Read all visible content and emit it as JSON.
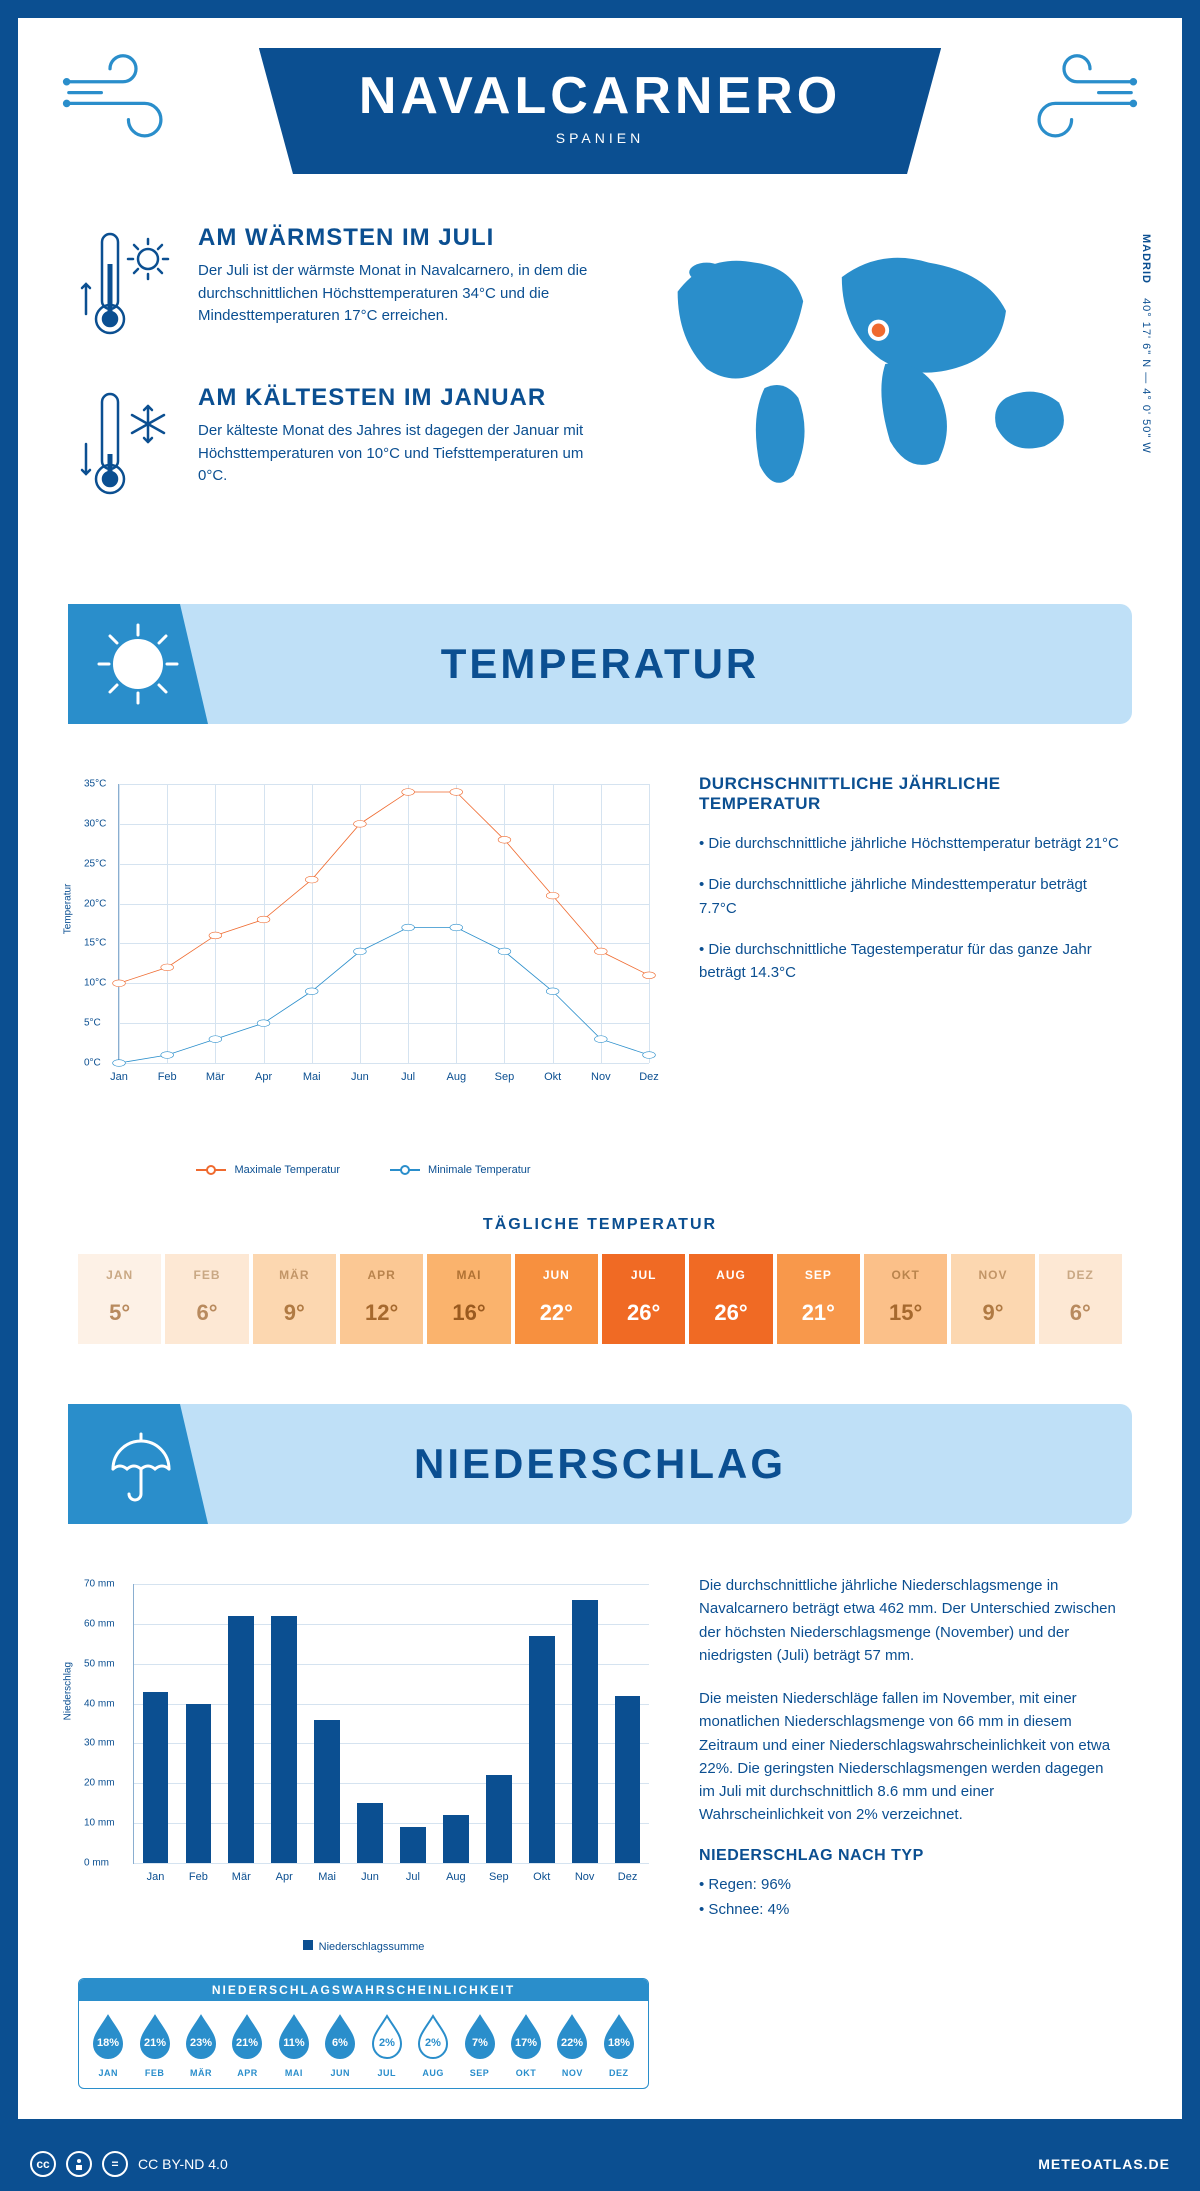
{
  "colors": {
    "primary": "#0b4f91",
    "light_blue": "#bfe0f7",
    "mid_blue": "#2a8ecb",
    "orange": "#ef6a2f",
    "grid": "#d5e3f0",
    "axis": "#8aaed0"
  },
  "header": {
    "city": "NAVALCARNERO",
    "country": "SPANIEN"
  },
  "facts": {
    "warm": {
      "title": "AM WÄRMSTEN IM JULI",
      "text": "Der Juli ist der wärmste Monat in Navalcarnero, in dem die durchschnittlichen Höchsttemperaturen 34°C und die Mindesttemperaturen 17°C erreichen."
    },
    "cold": {
      "title": "AM KÄLTESTEN IM JANUAR",
      "text": "Der kälteste Monat des Jahres ist dagegen der Januar mit Höchsttemperaturen von 10°C und Tiefsttemperaturen um 0°C."
    }
  },
  "coords": {
    "city": "MADRID",
    "value": "40° 17' 6\" N — 4° 0' 50\" W"
  },
  "temp_section": {
    "title": "TEMPERATUR",
    "sidebar_title": "DURCHSCHNITTLICHE JÄHRLICHE TEMPERATUR",
    "bullets": [
      "• Die durchschnittliche jährliche Höchsttemperatur beträgt 21°C",
      "• Die durchschnittliche jährliche Mindesttemperatur beträgt 7.7°C",
      "• Die durchschnittliche Tagestemperatur für das ganze Jahr beträgt 14.3°C"
    ]
  },
  "line_chart": {
    "type": "line",
    "ylim": [
      0,
      35
    ],
    "ytick_step": 5,
    "y_unit": "°C",
    "y_axis_title": "Temperatur",
    "months": [
      "Jan",
      "Feb",
      "Mär",
      "Apr",
      "Mai",
      "Jun",
      "Jul",
      "Aug",
      "Sep",
      "Okt",
      "Nov",
      "Dez"
    ],
    "series": {
      "max": {
        "label": "Maximale Temperatur",
        "color": "#ef6a2f",
        "values": [
          10,
          12,
          16,
          18,
          23,
          30,
          34,
          34,
          28,
          21,
          14,
          11
        ]
      },
      "min": {
        "label": "Minimale Temperatur",
        "color": "#2a8ecb",
        "values": [
          0,
          1,
          3,
          5,
          9,
          14,
          17,
          17,
          14,
          9,
          3,
          1
        ]
      }
    }
  },
  "daily": {
    "title": "TÄGLICHE TEMPERATUR",
    "months": [
      "JAN",
      "FEB",
      "MÄR",
      "APR",
      "MAI",
      "JUN",
      "JUL",
      "AUG",
      "SEP",
      "OKT",
      "NOV",
      "DEZ"
    ],
    "values": [
      "5°",
      "6°",
      "9°",
      "12°",
      "16°",
      "22°",
      "26°",
      "26°",
      "21°",
      "15°",
      "9°",
      "6°"
    ],
    "bg_colors": [
      "#fdf1e6",
      "#fde8d4",
      "#fcd7b0",
      "#fbc894",
      "#fab36d",
      "#f7903f",
      "#f06a24",
      "#f06a24",
      "#f8984b",
      "#fbc089",
      "#fcd7b0",
      "#fde8d4"
    ],
    "text_colors": [
      "#b88a5e",
      "#b88a5e",
      "#b07a43",
      "#a6692e",
      "#9a5a1f",
      "#ffffff",
      "#ffffff",
      "#ffffff",
      "#ffffff",
      "#a6692e",
      "#b07a43",
      "#b88a5e"
    ],
    "month_colors": [
      "#c9a884",
      "#c9a884",
      "#c29567",
      "#b9844d",
      "#b07234",
      "#ffffff",
      "#ffffff",
      "#ffffff",
      "#ffffff",
      "#b9844d",
      "#c29567",
      "#c9a884"
    ]
  },
  "precip_section": {
    "title": "NIEDERSCHLAG",
    "para1": "Die durchschnittliche jährliche Niederschlagsmenge in Navalcarnero beträgt etwa 462 mm. Der Unterschied zwischen der höchsten Niederschlagsmenge (November) und der niedrigsten (Juli) beträgt 57 mm.",
    "para2": "Die meisten Niederschläge fallen im November, mit einer monatlichen Niederschlagsmenge von 66 mm in diesem Zeitraum und einer Niederschlagswahrscheinlichkeit von etwa 22%. Die geringsten Niederschlagsmengen werden dagegen im Juli mit durchschnittlich 8.6 mm und einer Wahrscheinlichkeit von 2% verzeichnet.",
    "by_type_title": "NIEDERSCHLAG NACH TYP",
    "by_type": [
      "• Regen: 96%",
      "• Schnee: 4%"
    ]
  },
  "bar_chart": {
    "type": "bar",
    "y_axis_title": "Niederschlag",
    "ylim": [
      0,
      70
    ],
    "ytick_step": 10,
    "y_unit": " mm",
    "months": [
      "Jan",
      "Feb",
      "Mär",
      "Apr",
      "Mai",
      "Jun",
      "Jul",
      "Aug",
      "Sep",
      "Okt",
      "Nov",
      "Dez"
    ],
    "values": [
      43,
      40,
      62,
      62,
      36,
      15,
      9,
      12,
      22,
      57,
      66,
      42
    ],
    "bar_color": "#0b4f91",
    "legend": "Niederschlagssumme"
  },
  "prob": {
    "title": "NIEDERSCHLAGSWAHRSCHEINLICHKEIT",
    "months": [
      "JAN",
      "FEB",
      "MÄR",
      "APR",
      "MAI",
      "JUN",
      "JUL",
      "AUG",
      "SEP",
      "OKT",
      "NOV",
      "DEZ"
    ],
    "pct": [
      "18%",
      "21%",
      "23%",
      "21%",
      "11%",
      "6%",
      "2%",
      "2%",
      "7%",
      "17%",
      "22%",
      "18%"
    ],
    "filled": [
      true,
      true,
      true,
      true,
      true,
      true,
      false,
      false,
      true,
      true,
      true,
      true
    ]
  },
  "footer": {
    "license": "CC BY-ND 4.0",
    "site": "METEOATLAS.DE"
  }
}
